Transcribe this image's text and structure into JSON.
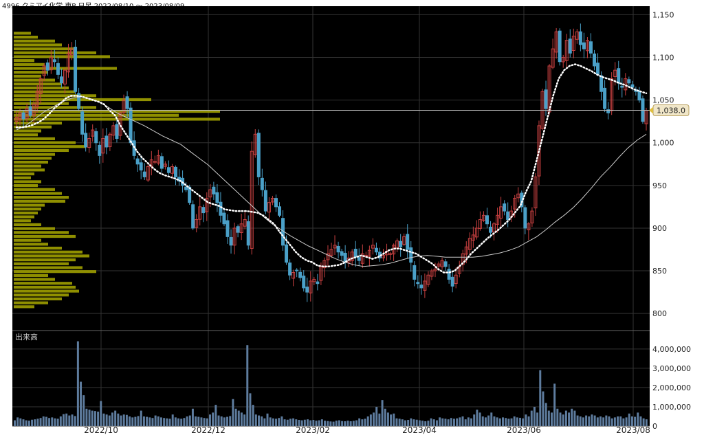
{
  "chart_data": [
    {
      "type": "candlestick",
      "title": "4996 クミアイ化学 東P 日足 2022/08/10 ～ 2023/08/09",
      "ylim": [
        780,
        1160
      ],
      "y_ticks": [
        "1,150",
        "1,100",
        "1,050",
        "1,000",
        "950",
        "900",
        "850",
        "800"
      ],
      "y_tick_values": [
        1150,
        1100,
        1050,
        1000,
        950,
        900,
        850,
        800
      ],
      "x_ticks": [
        "2022/10",
        "2022/12",
        "2023/02",
        "2023/04",
        "2023/06",
        "2023/08"
      ],
      "last_price_label": "1,038.0",
      "last_price": 1038,
      "grid": true,
      "colors": {
        "background": "#000000",
        "up": "#c84040",
        "down": "#4aa0c8",
        "grid": "#333333",
        "ma_short": "#ffffff",
        "ma_long": "#cccccc",
        "volume_profile": "#a8a800",
        "price_line": "#bbbbbb",
        "price_tag": "#f0e6c8"
      },
      "candles_close": [
        1030,
        1035,
        1028,
        1040,
        1032,
        1045,
        1060,
        1075,
        1090,
        1085,
        1100,
        1095,
        1080,
        1070,
        1085,
        1105,
        1110,
        1060,
        1040,
        1010,
        995,
        1005,
        1015,
        1000,
        985,
        1005,
        995,
        1010,
        1020,
        1005,
        1035,
        1050,
        1040,
        1000,
        985,
        975,
        968,
        960,
        972,
        980,
        978,
        985,
        970,
        975,
        965,
        972,
        960,
        955,
        950,
        945,
        930,
        900,
        910,
        925,
        918,
        935,
        945,
        940,
        930,
        915,
        905,
        890,
        880,
        900,
        895,
        905,
        910,
        880,
        990,
        1010,
        960,
        945,
        920,
        930,
        935,
        925,
        915,
        880,
        860,
        845,
        848,
        850,
        842,
        830,
        825,
        838,
        840,
        835,
        855,
        862,
        870,
        875,
        880,
        872,
        868,
        860,
        865,
        872,
        866,
        862,
        870,
        868,
        874,
        880,
        872,
        865,
        868,
        873,
        870,
        880,
        885,
        878,
        890,
        875,
        860,
        840,
        835,
        830,
        838,
        845,
        850,
        852,
        858,
        862,
        855,
        840,
        832,
        845,
        855,
        870,
        878,
        888,
        892,
        900,
        910,
        915,
        905,
        895,
        905,
        915,
        925,
        920,
        910,
        920,
        935,
        940,
        925,
        900,
        905,
        920,
        960,
        1020,
        1060,
        1040,
        1090,
        1110,
        1130,
        1095,
        1100,
        1120,
        1105,
        1125,
        1130,
        1115,
        1110,
        1120,
        1105,
        1090,
        1080,
        1060,
        1040,
        1035,
        1075,
        1085,
        1070,
        1065,
        1075,
        1070,
        1065,
        1060,
        1050,
        1025,
        1038
      ],
      "ma_short": [
        1018,
        1018,
        1019,
        1021,
        1024,
        1028,
        1034,
        1041,
        1046,
        1052,
        1055,
        1055,
        1054,
        1052,
        1050,
        1048,
        1045,
        1038,
        1032,
        1020,
        1010,
        1000,
        990,
        982,
        976,
        970,
        965,
        962,
        960,
        958,
        955,
        950,
        945,
        940,
        935,
        930,
        928,
        926,
        922,
        921,
        920,
        920,
        920,
        919,
        918,
        915,
        910,
        905,
        896,
        888,
        880,
        872,
        866,
        862,
        860,
        856,
        855,
        855,
        856,
        857,
        860,
        864,
        866,
        868,
        866,
        864,
        866,
        870,
        874,
        876,
        876,
        874,
        872,
        870,
        866,
        862,
        858,
        852,
        848,
        848,
        850,
        856,
        862,
        870,
        876,
        882,
        888,
        893,
        898,
        904,
        910,
        918,
        926,
        942,
        955,
        980,
        1005,
        1030,
        1055,
        1075,
        1085,
        1090,
        1092,
        1090,
        1087,
        1084,
        1080,
        1077,
        1075,
        1073,
        1070,
        1068,
        1065,
        1062,
        1060,
        1058
      ],
      "ma_long": [
        1015,
        1020,
        1028,
        1036,
        1042,
        1048,
        1052,
        1054,
        1052,
        1048,
        1042,
        1035,
        1030,
        1025,
        1020,
        1014,
        1008,
        1003,
        998,
        990,
        982,
        974,
        964,
        954,
        944,
        934,
        924,
        914,
        905,
        898,
        891,
        885,
        879,
        874,
        869,
        864,
        860,
        857,
        855,
        856,
        857,
        859,
        862,
        865,
        867,
        868,
        867,
        866,
        866,
        866,
        866,
        867,
        869,
        871,
        874,
        878,
        884,
        890,
        898,
        907,
        915,
        924,
        935,
        947,
        960,
        971,
        983,
        994,
        1003,
        1010
      ],
      "volume_profile": [
        25,
        35,
        60,
        70,
        90,
        120,
        140,
        30,
        45,
        150,
        50,
        40,
        60,
        70,
        80,
        90,
        120,
        200,
        80,
        120,
        300,
        240,
        300,
        70,
        55,
        40,
        35,
        60,
        90,
        105,
        80,
        60,
        55,
        50,
        40,
        45,
        30,
        25,
        40,
        35,
        60,
        70,
        80,
        75,
        45,
        40,
        35,
        30,
        25,
        40,
        60,
        80,
        90,
        40,
        50,
        70,
        100,
        110,
        90,
        80,
        100,
        120,
        50,
        60,
        85,
        90,
        95,
        80,
        70,
        50,
        30
      ]
    },
    {
      "type": "bar",
      "title": "出来高",
      "ylim": [
        0,
        4600000
      ],
      "y_ticks": [
        "4,000,000",
        "3,000,000",
        "2,000,000",
        "1,000,000",
        "0"
      ],
      "y_tick_values": [
        4000000,
        3000000,
        2000000,
        1000000,
        0
      ],
      "values": [
        300000,
        450000,
        400000,
        350000,
        300000,
        280000,
        330000,
        350000,
        380000,
        420000,
        500000,
        480000,
        420000,
        450000,
        400000,
        380000,
        500000,
        620000,
        650000,
        550000,
        600000,
        520000,
        4400000,
        2300000,
        1600000,
        900000,
        850000,
        800000,
        780000,
        750000,
        1300000,
        650000,
        600000,
        550000,
        700000,
        800000,
        650000,
        550000,
        600000,
        580000,
        500000,
        450000,
        480000,
        520000,
        800000,
        500000,
        480000,
        450000,
        420000,
        550000,
        500000,
        450000,
        420000,
        400000,
        380000,
        600000,
        450000,
        400000,
        380000,
        420000,
        500000,
        550000,
        900000,
        500000,
        480000,
        450000,
        420000,
        400000,
        600000,
        700000,
        1100000,
        550000,
        500000,
        450000,
        480000,
        520000,
        1400000,
        900000,
        800000,
        700000,
        600000,
        4200000,
        1700000,
        1100000,
        600000,
        550000,
        500000,
        400000,
        650000,
        450000,
        400000,
        380000,
        420000,
        500000,
        350000,
        330000,
        380000,
        400000,
        350000,
        320000,
        300000,
        330000,
        350000,
        300000,
        320000,
        280000,
        300000,
        350000,
        280000,
        260000,
        240000,
        230000,
        280000,
        300000,
        260000,
        250000,
        280000,
        250000,
        270000,
        300000,
        400000,
        350000,
        380000,
        500000,
        600000,
        700000,
        1000000,
        650000,
        1350000,
        900000,
        700000,
        600000,
        650000,
        400000,
        380000,
        350000,
        300000,
        320000,
        400000,
        350000,
        330000,
        300000,
        280000,
        250000,
        280000,
        400000,
        350000,
        300000,
        450000,
        400000,
        380000,
        350000,
        420000,
        380000,
        400000,
        450000,
        500000,
        350000,
        450000,
        400000,
        600000,
        850000,
        700000,
        500000,
        450000,
        550000,
        700000,
        500000,
        450000,
        400000,
        450000,
        420000,
        380000,
        400000,
        500000,
        450000,
        430000,
        400000,
        600000,
        500000,
        800000,
        1000000,
        700000,
        2900000,
        1800000,
        1200000,
        800000,
        700000,
        2200000,
        900000,
        700000,
        600000,
        800000,
        700000,
        900000,
        800000,
        550000,
        500000,
        450000,
        550000,
        500000,
        600000,
        550000,
        450000,
        500000,
        450000,
        550000,
        500000,
        400000,
        450000,
        500000,
        500000,
        400000,
        450000,
        650000,
        500000,
        480000,
        700000,
        500000,
        400000,
        350000
      ]
    }
  ]
}
